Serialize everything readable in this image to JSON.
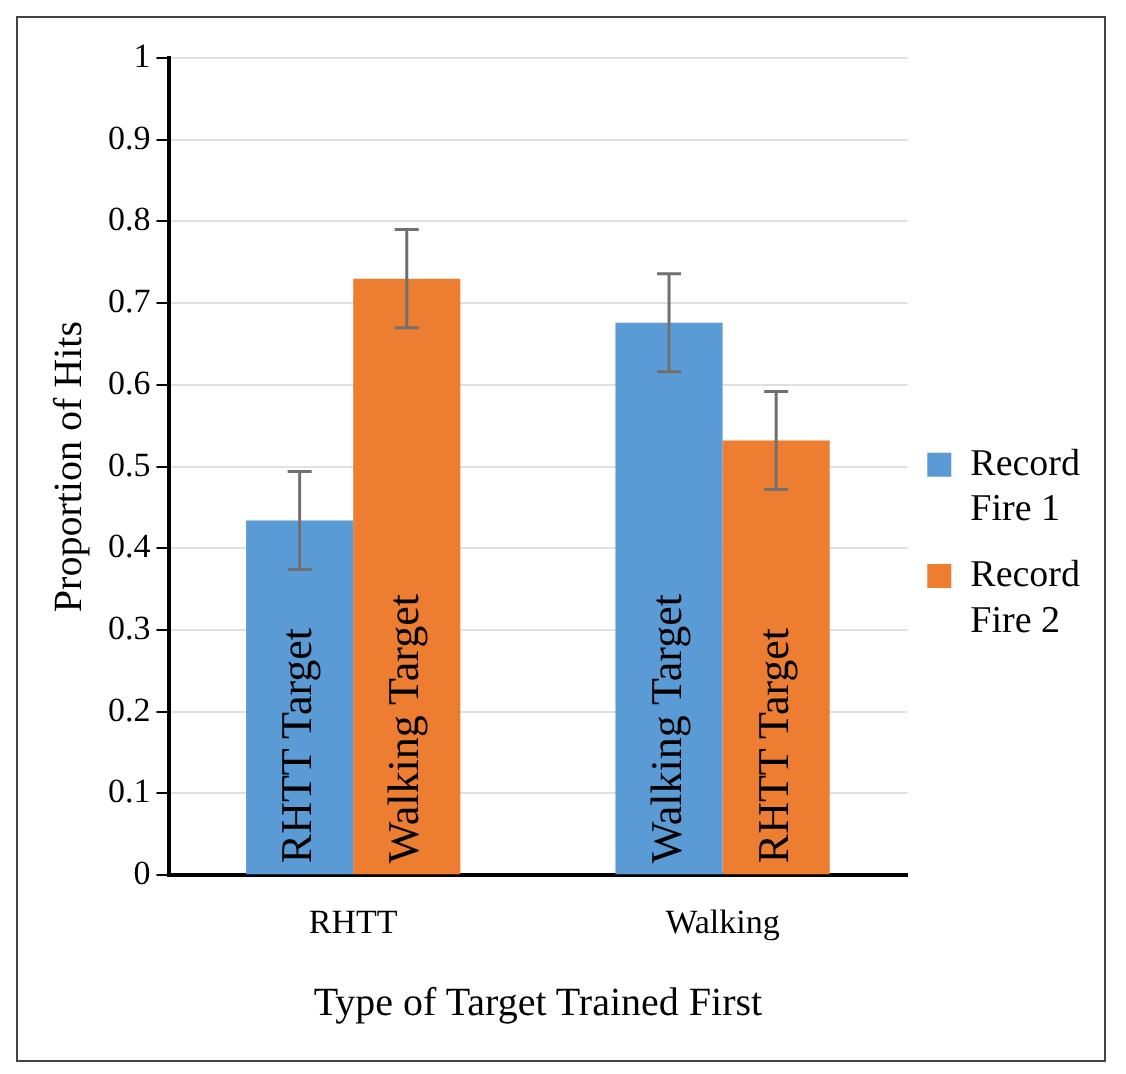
{
  "chart_data": {
    "type": "bar",
    "xlabel": "Type of Target Trained First",
    "ylabel": "Proportion of Hits",
    "categories": [
      "RHTT",
      "Walking"
    ],
    "series": [
      {
        "name": "Record Fire 1",
        "color": "#5b9bd5",
        "values": [
          0.434,
          0.676
        ],
        "errors": [
          0.06,
          0.06
        ]
      },
      {
        "name": "Record Fire 2",
        "color": "#ed7d31",
        "values": [
          0.73,
          0.532
        ],
        "errors": [
          0.06,
          0.06
        ]
      }
    ],
    "annotations": [
      "RHTT Target",
      "Walking Target",
      "Walking Target",
      "RHTT Target"
    ],
    "ylim": [
      0,
      1
    ],
    "yticks": [
      0,
      0.1,
      0.2,
      0.3,
      0.4,
      0.5,
      0.6,
      0.7,
      0.8,
      0.9,
      1
    ],
    "grid": "y",
    "legend": "right"
  }
}
